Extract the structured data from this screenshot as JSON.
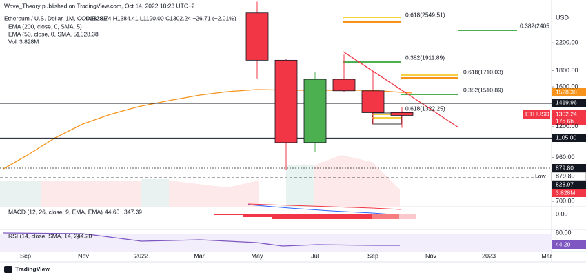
{
  "header": {
    "published": "Wave_Theory published on TradingView.com, Oct 14, 2022 18:23 UTC+2",
    "symbol": "Ethereum / U.S. Dollar, 1M, COINBASE",
    "ohlc": "O1328.74 H1384.41 L1190.00 C1302.24 −26.71 (−2.01%)",
    "ema200": "EMA (200, close, 0, SMA, 5)",
    "ema50": "EMA (50, close, 0, SMA, 5)",
    "ema50_value": "1528.38",
    "vol": "Vol",
    "vol_value": "3.828M"
  },
  "chart_data": {
    "type": "candlestick",
    "currency": "USD",
    "log_scale": true,
    "ylim": [
      673,
      2880
    ],
    "yticks": [
      {
        "value": 2200,
        "label": "2200.00"
      },
      {
        "value": 1800,
        "label": "1800.00"
      },
      {
        "value": 1600,
        "label": "1600.00"
      },
      {
        "value": 1200,
        "label": "1200.00"
      },
      {
        "value": 960,
        "label": "960.00"
      },
      {
        "value": 700,
        "label": "700.00"
      }
    ],
    "x_labels": [
      "Sep",
      "Nov",
      "2022",
      "Mar",
      "May",
      "Jul",
      "Sep",
      "Nov",
      "2023",
      "Mar"
    ],
    "open": [
      2730,
      1940,
      1070,
      1690,
      1555,
      1328.74
    ],
    "high": [
      2960,
      1960,
      1780,
      2020,
      1790,
      1384.41
    ],
    "low": [
      1700,
      880,
      1000,
      1540,
      1220,
      1190
    ],
    "close": [
      1940,
      1070,
      1690,
      1555,
      1328,
      1302.24
    ],
    "up_color": "#4caf50",
    "down_color": "#f23645",
    "levels": [
      {
        "value": 1419.96,
        "label": "1419.96"
      },
      {
        "value": 1105,
        "label": "1105.00"
      }
    ]
  },
  "price_labels": {
    "ema50": "1528.38",
    "symbol": "ETHUSD",
    "last": "1302.24",
    "countdown": "17d 6h",
    "l1": "879.80",
    "low_name": "Low",
    "low": "879.80",
    "low2": "828.97",
    "vol": "3.828M"
  },
  "fib_labels": [
    "0.618(2549.51)",
    "0.382(2405",
    "0.382(1911.89)",
    "0.618(1710.03)",
    "0.382(1510.89)",
    "0.618(1322.25)"
  ],
  "macd": {
    "label": "MACD (12, 26, close, 9, EMA, EMA)",
    "v1": "44.65",
    "v2": "347.39",
    "axis": "0.00"
  },
  "rsi": {
    "label": "RSI (14, close, SMA, 14, 2)",
    "value": "44.20",
    "axis": "80.00",
    "box": "44.20"
  },
  "footer": {
    "brand": "TradingView"
  }
}
